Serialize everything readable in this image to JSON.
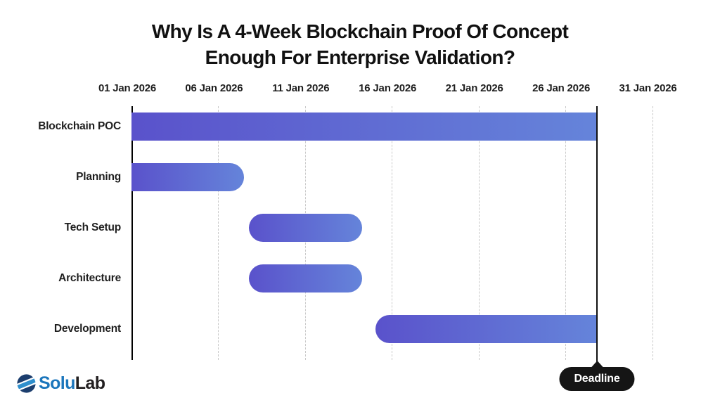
{
  "title": {
    "line1": "Why Is A 4-Week Blockchain Proof Of Concept",
    "line2": "Enough For Enterprise Validation?"
  },
  "brand": {
    "name_primary": "Solu",
    "name_secondary": "Lab",
    "icon": "solulab-striped-sphere-icon"
  },
  "colors": {
    "title_text": "#111111",
    "bar_gradient_start": "#5a52cb",
    "bar_gradient_end": "#6584da",
    "axis_line": "#000000",
    "gridline": "#c9c9c9",
    "deadline_line": "#111111",
    "tooltip_bg": "#151515",
    "tooltip_text": "#ffffff",
    "logo_blue": "#1b76bc",
    "logo_dark": "#221f20",
    "logo_icon_navy": "#1c3e6e",
    "logo_icon_light_blue": "#2f8fcd"
  },
  "chart_data": {
    "type": "gantt",
    "title": "Why Is A 4-Week Blockchain Proof Of Concept Enough For Enterprise Validation?",
    "grid": "dashed-vertical",
    "legend": "none",
    "x_axis": {
      "tick_labels": [
        "01 Jan 2026",
        "06 Jan 2026",
        "11 Jan 2026",
        "16 Jan 2026",
        "21 Jan 2026",
        "26 Jan 2026",
        "31 Jan 2026"
      ],
      "tick_days": [
        1,
        6,
        11,
        16,
        21,
        26,
        31
      ],
      "range_days": [
        1,
        33
      ]
    },
    "tasks": [
      {
        "label": "Blockchain POC",
        "start": "01 Jan 2026",
        "end": "28 Jan 2026",
        "start_day": 1,
        "end_day": 27.78,
        "rounded_left": false,
        "rounded_right": false
      },
      {
        "label": "Planning",
        "start": "01 Jan 2026",
        "end": "07 Jan 2026",
        "start_day": 1,
        "end_day": 7.5,
        "rounded_left": false,
        "rounded_right": true
      },
      {
        "label": "Tech Setup",
        "start": "08 Jan 2026",
        "end": "14 Jan 2026",
        "start_day": 7.75,
        "end_day": 14.3,
        "rounded_left": true,
        "rounded_right": true
      },
      {
        "label": "Architecture",
        "start": "08 Jan 2026",
        "end": "14 Jan 2026",
        "start_day": 7.75,
        "end_day": 14.3,
        "rounded_left": true,
        "rounded_right": true
      },
      {
        "label": "Development",
        "start": "15 Jan 2026",
        "end": "28 Jan 2026",
        "start_day": 15.05,
        "end_day": 27.78,
        "rounded_left": true,
        "rounded_right": false
      }
    ],
    "deadline": {
      "label": "Deadline",
      "date": "28 Jan 2026",
      "day": 27.78
    }
  }
}
